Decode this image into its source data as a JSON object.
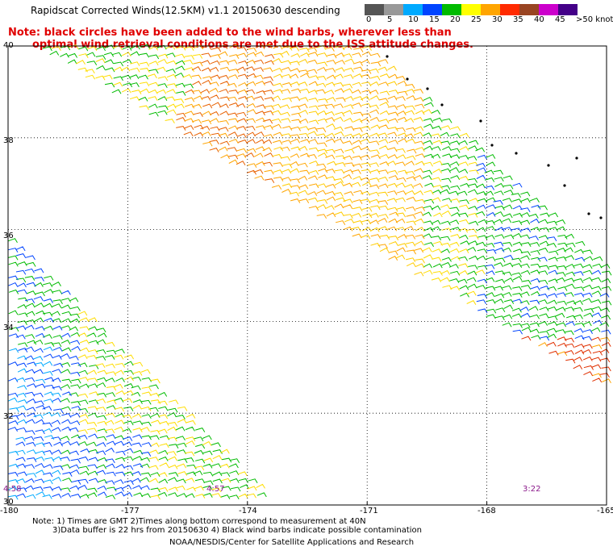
{
  "title": "Rapidscat Corrected Winds(12.5KM) v1.1 20150630 descending",
  "note": {
    "line1": "Note: black circles have been added to the wind barbs, wherever less than",
    "line2": "optimal wind retrieval conditions are met due to the ISS attitude changes."
  },
  "colorbar": {
    "labels": [
      "0",
      "5",
      "10",
      "15",
      "20",
      "25",
      "30",
      "35",
      "40",
      "45",
      ">50 knots"
    ],
    "colors": [
      "#555555",
      "#999999",
      "#00aaff",
      "#0044ff",
      "#00bb00",
      "#ffff00",
      "#ffa500",
      "#ff2a00",
      "#994422",
      "#cc00cc",
      "#440088"
    ]
  },
  "lat_labels": [
    "40",
    "38",
    "36",
    "34",
    "32",
    "30"
  ],
  "lon_labels": [
    "-180",
    "-177",
    "-174",
    "-171",
    "-168",
    "-165"
  ],
  "time_labels": [
    "4:58",
    "4:57",
    "3:22"
  ],
  "footer": {
    "line1": "Note: 1) Times are GMT 2)Times along bottom correspond to measurement at 40N",
    "line2": "3)Data buffer is 22 hrs from 20150630 4) Black wind barbs indicate possible contamination",
    "line3": "NOAA/NESDIS/Center for Satellite Applications and Research"
  },
  "map": {
    "lon_range": [
      -180,
      -165
    ],
    "lat_range": [
      30,
      40
    ],
    "grid_lons": [
      -177,
      -174,
      -171,
      -168
    ],
    "grid_lats": [
      38,
      36,
      34,
      32
    ]
  }
}
